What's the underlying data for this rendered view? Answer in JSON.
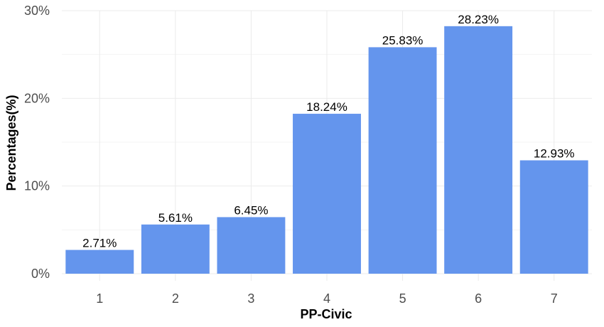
{
  "chart_data": {
    "type": "bar",
    "categories": [
      "1",
      "2",
      "3",
      "4",
      "5",
      "6",
      "7"
    ],
    "values": [
      2.71,
      5.61,
      6.45,
      18.24,
      25.83,
      28.23,
      12.93
    ],
    "data_labels": [
      "2.71%",
      "5.61%",
      "6.45%",
      "18.24%",
      "25.83%",
      "28.23%",
      "12.93%"
    ],
    "xlabel": "PP-Civic",
    "ylabel": "Percentages(%)",
    "ylim": [
      0,
      30
    ],
    "yticks": [
      0,
      10,
      20,
      30
    ],
    "ytick_labels": [
      "0%",
      "10%",
      "20%",
      "30%"
    ],
    "grid": true,
    "bar_color": "#6495ED"
  }
}
